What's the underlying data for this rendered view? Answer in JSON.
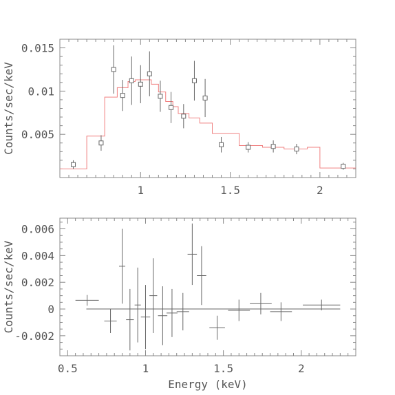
{
  "chart_data": [
    {
      "type": "scatter",
      "name": "spectrum",
      "title": "",
      "xlabel": "",
      "ylabel": "Counts/sec/keV",
      "xlim": [
        0.55,
        2.2
      ],
      "ylim": [
        0,
        0.016
      ],
      "xticks": [
        1,
        1.5,
        2
      ],
      "xtick_labels": [
        "1",
        "1.5",
        "2"
      ],
      "yticks": [
        0.005,
        0.01,
        0.015
      ],
      "ytick_labels": [
        "0.005",
        "0.01",
        "0.015"
      ],
      "grid": false,
      "colors": {
        "model": "#f08080",
        "data": "#666666",
        "frame": "#888888"
      },
      "data_points": [
        {
          "x": 0.625,
          "y": 0.0015,
          "yerr": 0.0005
        },
        {
          "x": 0.78,
          "y": 0.004,
          "yerr": 0.0009
        },
        {
          "x": 0.85,
          "y": 0.0125,
          "yerr": 0.0028
        },
        {
          "x": 0.9,
          "y": 0.0095,
          "yerr": 0.0018
        },
        {
          "x": 0.95,
          "y": 0.0112,
          "yerr": 0.0028
        },
        {
          "x": 1.0,
          "y": 0.0108,
          "yerr": 0.0022
        },
        {
          "x": 1.05,
          "y": 0.012,
          "yerr": 0.0026
        },
        {
          "x": 1.11,
          "y": 0.0094,
          "yerr": 0.0018
        },
        {
          "x": 1.17,
          "y": 0.0081,
          "yerr": 0.0018
        },
        {
          "x": 1.24,
          "y": 0.0071,
          "yerr": 0.0014
        },
        {
          "x": 1.3,
          "y": 0.0112,
          "yerr": 0.0023
        },
        {
          "x": 1.36,
          "y": 0.0092,
          "yerr": 0.0022
        },
        {
          "x": 1.45,
          "y": 0.0038,
          "yerr": 0.0009
        },
        {
          "x": 1.6,
          "y": 0.0035,
          "yerr": 0.0006
        },
        {
          "x": 1.74,
          "y": 0.0036,
          "yerr": 0.0007
        },
        {
          "x": 1.87,
          "y": 0.0033,
          "yerr": 0.0006
        },
        {
          "x": 2.13,
          "y": 0.0013,
          "yerr": 0.0004
        }
      ],
      "model_step": {
        "edges": [
          0.55,
          0.7,
          0.8,
          0.87,
          0.93,
          0.97,
          1.02,
          1.06,
          1.1,
          1.14,
          1.18,
          1.21,
          1.27,
          1.33,
          1.4,
          1.55,
          1.68,
          1.8,
          1.93,
          2.0,
          2.2
        ],
        "values": [
          0.001,
          0.0048,
          0.0093,
          0.0104,
          0.0111,
          0.0113,
          0.0113,
          0.0108,
          0.0099,
          0.0088,
          0.0082,
          0.0074,
          0.0069,
          0.0063,
          0.0051,
          0.0037,
          0.0035,
          0.0033,
          0.0035,
          0.0011
        ]
      }
    },
    {
      "type": "scatter",
      "name": "residuals",
      "title": "",
      "xlabel": "Energy (keV)",
      "ylabel": "Counts/sec/keV",
      "xlim": [
        0.45,
        2.35
      ],
      "ylim": [
        -0.0035,
        0.0068
      ],
      "xticks": [
        0.5,
        1,
        1.5,
        2
      ],
      "xtick_labels": [
        "0.5",
        "1",
        "1.5",
        "2"
      ],
      "yticks": [
        -0.002,
        0,
        0.002,
        0.004,
        0.006
      ],
      "ytick_labels": [
        "-0.002",
        "0",
        "0.002",
        "0.004",
        "0.006"
      ],
      "grid": false,
      "zero_line": {
        "x_from": 0.62,
        "x_to": 2.25
      },
      "colors": {
        "data": "#666666",
        "frame": "#888888"
      },
      "data_points": [
        {
          "x": 0.625,
          "xerr": 0.075,
          "y": 0.00065,
          "yerr": 0.0004
        },
        {
          "x": 0.775,
          "xerr": 0.04,
          "y": -0.0009,
          "yerr": 0.0009
        },
        {
          "x": 0.85,
          "xerr": 0.02,
          "y": 0.0032,
          "yerr": 0.0028
        },
        {
          "x": 0.9,
          "xerr": 0.025,
          "y": -0.0008,
          "yerr": 0.0023
        },
        {
          "x": 0.95,
          "xerr": 0.02,
          "y": 0.0003,
          "yerr": 0.0028
        },
        {
          "x": 1.0,
          "xerr": 0.03,
          "y": -0.0006,
          "yerr": 0.0024
        },
        {
          "x": 1.05,
          "xerr": 0.025,
          "y": 0.001,
          "yerr": 0.0028
        },
        {
          "x": 1.11,
          "xerr": 0.03,
          "y": -0.0005,
          "yerr": 0.0022
        },
        {
          "x": 1.17,
          "xerr": 0.035,
          "y": -0.0003,
          "yerr": 0.0018
        },
        {
          "x": 1.24,
          "xerr": 0.04,
          "y": -0.0002,
          "yerr": 0.0014
        },
        {
          "x": 1.3,
          "xerr": 0.03,
          "y": 0.0041,
          "yerr": 0.0023
        },
        {
          "x": 1.36,
          "xerr": 0.03,
          "y": 0.0025,
          "yerr": 0.0022
        },
        {
          "x": 1.46,
          "xerr": 0.05,
          "y": -0.0014,
          "yerr": 0.0009
        },
        {
          "x": 1.6,
          "xerr": 0.07,
          "y": -0.0001,
          "yerr": 0.0008
        },
        {
          "x": 1.74,
          "xerr": 0.07,
          "y": 0.0004,
          "yerr": 0.0008
        },
        {
          "x": 1.87,
          "xerr": 0.07,
          "y": -0.0002,
          "yerr": 0.0007
        },
        {
          "x": 2.13,
          "xerr": 0.12,
          "y": 0.0003,
          "yerr": 0.0004
        }
      ]
    }
  ]
}
